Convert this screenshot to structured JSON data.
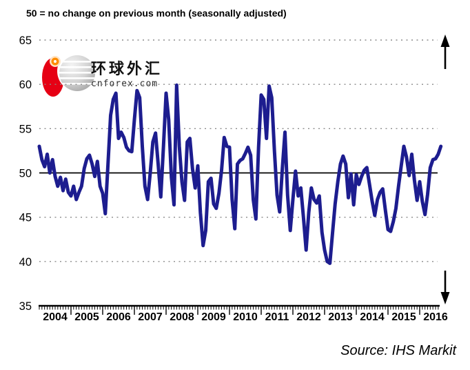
{
  "title": {
    "text": "50 = no change on previous month (seasonally adjusted)"
  },
  "watermark": {
    "brand_cjk": "环球外汇",
    "brand_domain": "cnforex.com"
  },
  "footer": {
    "source": "Source: IHS Markit"
  },
  "colors": {
    "line": "#1d1d8f",
    "grid": "#8a8a8a",
    "axis": "#000000",
    "logo_red": "#e60014",
    "logo_orange": "#ff8c00"
  },
  "chart_data": {
    "type": "line",
    "title": "50 = no change on previous month (seasonally adjusted)",
    "frequency": "monthly",
    "x_start": "2004-01",
    "x_end": "2016-09",
    "xlabel": "",
    "ylabel": "",
    "ylim": [
      35,
      65
    ],
    "yticks": [
      65,
      60,
      55,
      50,
      45,
      40,
      35
    ],
    "xticklabels": [
      "2004",
      "2005",
      "2006",
      "2007",
      "2008",
      "2009",
      "2010",
      "2011",
      "2012",
      "2013",
      "2014",
      "2015",
      "2016"
    ],
    "reference_line": 50,
    "grid": "horizontal-dotted",
    "legend": "none",
    "annotations": [
      "up-arrow top-right",
      "down-arrow bottom-right"
    ],
    "source": "Source: IHS Markit",
    "series": [
      {
        "name": "Diffusion index (50 = no change on previous month, seasonally adjusted)",
        "color": "#1d1d8f",
        "values": [
          53.0,
          51.5,
          50.7,
          52.1,
          50.0,
          51.5,
          49.6,
          48.5,
          49.5,
          48.0,
          49.3,
          47.8,
          47.4,
          48.5,
          47.0,
          47.8,
          48.5,
          50.5,
          51.6,
          52.0,
          51.0,
          49.6,
          51.3,
          48.5,
          47.7,
          45.4,
          51.0,
          56.5,
          58.3,
          59.0,
          53.9,
          54.6,
          54.0,
          52.9,
          52.5,
          52.4,
          56.0,
          59.3,
          58.5,
          53.0,
          48.5,
          47.0,
          50.0,
          53.5,
          54.5,
          51.0,
          47.3,
          53.0,
          59.0,
          56.0,
          49.5,
          46.4,
          59.9,
          53.0,
          49.0,
          46.9,
          53.5,
          53.9,
          50.5,
          48.3,
          50.8,
          45.5,
          41.8,
          43.5,
          49.0,
          49.4,
          46.5,
          46.0,
          47.7,
          50.3,
          54.0,
          53.0,
          52.9,
          47.0,
          43.7,
          51.0,
          51.4,
          51.6,
          52.2,
          52.9,
          52.0,
          47.0,
          44.8,
          52.9,
          58.8,
          58.3,
          53.9,
          59.8,
          58.5,
          52.5,
          47.5,
          45.6,
          50.5,
          54.6,
          47.5,
          43.5,
          47.0,
          50.2,
          47.4,
          48.3,
          45.0,
          41.3,
          45.5,
          48.3,
          47.0,
          46.6,
          47.4,
          43.3,
          41.3,
          40.0,
          39.8,
          43.2,
          46.5,
          49.0,
          51.0,
          51.9,
          51.0,
          47.2,
          49.9,
          46.4,
          49.8,
          48.7,
          49.6,
          50.3,
          50.6,
          48.7,
          46.8,
          45.2,
          47.0,
          47.8,
          48.2,
          45.8,
          43.6,
          43.4,
          44.5,
          46.0,
          48.5,
          50.8,
          53.0,
          51.8,
          49.7,
          52.1,
          49.2,
          46.9,
          49.0,
          46.8,
          45.3,
          47.6,
          50.6,
          51.5,
          51.6,
          52.1,
          53.0
        ]
      }
    ]
  }
}
